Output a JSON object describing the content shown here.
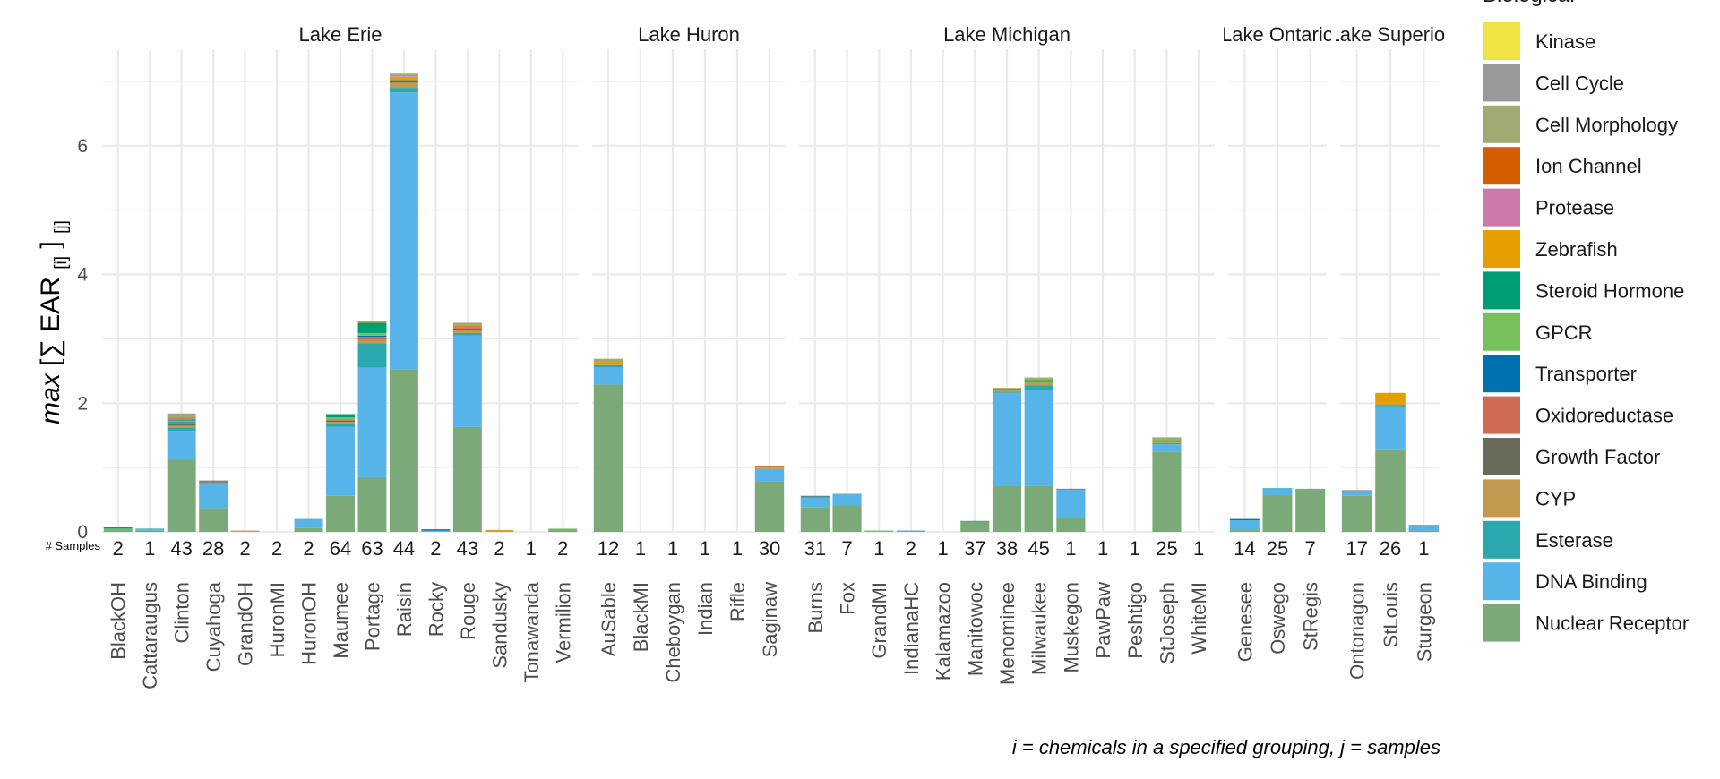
{
  "chart_data": {
    "type": "bar",
    "stacked": true,
    "ylabel_prefix": "max",
    "ylabel_sum": "[∑ EAR",
    "ylabel_sub1": "[i]",
    "ylabel_close": "]",
    "ylabel_sub2": "[j]",
    "ylim": [
      0,
      7.5
    ],
    "yticks": [
      0,
      2,
      4,
      6
    ],
    "grid": true,
    "samples_label": "# Samples",
    "caption": "i = chemicals in a specified grouping, j = samples",
    "legend_title": "Biological",
    "legend_placement": "right",
    "categories_legend": [
      {
        "name": "Kinase",
        "color": "#F0E442"
      },
      {
        "name": "Cell Cycle",
        "color": "#999999"
      },
      {
        "name": "Cell Morphology",
        "color": "#A0AA73"
      },
      {
        "name": "Ion Channel",
        "color": "#D55E00"
      },
      {
        "name": "Protease",
        "color": "#CC79A7"
      },
      {
        "name": "Zebrafish",
        "color": "#E69F00"
      },
      {
        "name": "Steroid Hormone",
        "color": "#009E73"
      },
      {
        "name": "GPCR",
        "color": "#77C05B"
      },
      {
        "name": "Transporter",
        "color": "#0072B2"
      },
      {
        "name": "Oxidoreductase",
        "color": "#CF6A55"
      },
      {
        "name": "Growth Factor",
        "color": "#6A6A5A"
      },
      {
        "name": "CYP",
        "color": "#C19A4F"
      },
      {
        "name": "Esterase",
        "color": "#2BA8AE"
      },
      {
        "name": "DNA Binding",
        "color": "#56B4E9"
      },
      {
        "name": "Nuclear Receptor",
        "color": "#7BAA78"
      }
    ],
    "facets": [
      {
        "name": "Lake Erie",
        "sites": [
          {
            "site": "BlackOH",
            "n": "2",
            "v": {
              "Nuclear Receptor": 0.04,
              "Steroid Hormone": 0.02,
              "GPCR": 0.01
            }
          },
          {
            "site": "Cattaraugus",
            "n": "1",
            "v": {
              "Nuclear Receptor": 0.02,
              "DNA Binding": 0.02,
              "Esterase": 0.01
            }
          },
          {
            "site": "Clinton",
            "n": "43",
            "v": {
              "Nuclear Receptor": 1.12,
              "DNA Binding": 0.45,
              "Esterase": 0.05,
              "CYP": 0.03,
              "Growth Factor": 0.03,
              "Oxidoreductase": 0.02,
              "Transporter": 0.01,
              "GPCR": 0.02,
              "Steroid Hormone": 0.02,
              "Zebrafish": 0.01,
              "Protease": 0.01,
              "Ion Channel": 0.01,
              "Cell Morphology": 0.05,
              "Cell Cycle": 0.01,
              "Kinase": 0.0
            }
          },
          {
            "site": "Cuyahoga",
            "n": "28",
            "v": {
              "Nuclear Receptor": 0.37,
              "DNA Binding": 0.37,
              "Esterase": 0.02,
              "CYP": 0.01,
              "Growth Factor": 0.02,
              "Cell Cycle": 0.01
            }
          },
          {
            "site": "GrandOH",
            "n": "2",
            "v": {
              "Nuclear Receptor": 0.01,
              "CYP": 0.01
            }
          },
          {
            "site": "HuronMI",
            "n": "2",
            "v": {}
          },
          {
            "site": "HuronOH",
            "n": "2",
            "v": {
              "Nuclear Receptor": 0.06,
              "DNA Binding": 0.13,
              "Esterase": 0.01
            }
          },
          {
            "site": "Maumee",
            "n": "64",
            "v": {
              "Nuclear Receptor": 0.56,
              "DNA Binding": 1.07,
              "Esterase": 0.05,
              "CYP": 0.03,
              "Growth Factor": 0.02,
              "Oxidoreductase": 0.02,
              "GPCR": 0.03,
              "Steroid Hormone": 0.05
            }
          },
          {
            "site": "Portage",
            "n": "63",
            "v": {
              "Nuclear Receptor": 0.85,
              "DNA Binding": 1.7,
              "Esterase": 0.38,
              "CYP": 0.05,
              "Oxidoreductase": 0.05,
              "Transporter": 0.02,
              "GPCR": 0.04,
              "Zebrafish": 0.03,
              "Steroid Hormone": 0.16
            }
          },
          {
            "site": "Raisin",
            "n": "44",
            "v": {
              "Nuclear Receptor": 2.53,
              "DNA Binding": 4.3,
              "Esterase": 0.07,
              "CYP": 0.08,
              "Growth Factor": 0.02,
              "Oxidoreductase": 0.02,
              "Zebrafish": 0.03,
              "Protease": 0.01,
              "Cell Morphology": 0.04,
              "GPCR": 0.02,
              "Kinase": 0.01
            }
          },
          {
            "site": "Rocky",
            "n": "2",
            "v": {
              "Nuclear Receptor": 0.01,
              "DNA Binding": 0.01,
              "Transporter": 0.02
            }
          },
          {
            "site": "Rouge",
            "n": "43",
            "v": {
              "Nuclear Receptor": 1.63,
              "DNA Binding": 1.42,
              "Esterase": 0.04,
              "CYP": 0.05,
              "Growth Factor": 0.02,
              "Oxidoreductase": 0.02,
              "Zebrafish": 0.01,
              "Ion Channel": 0.01,
              "Cell Morphology": 0.05
            }
          },
          {
            "site": "Sandusky",
            "n": "2",
            "v": {
              "Nuclear Receptor": 0.01,
              "CYP": 0.01,
              "Zebrafish": 0.01
            }
          },
          {
            "site": "Tonawanda",
            "n": "1",
            "v": {}
          },
          {
            "site": "Vermilion",
            "n": "2",
            "v": {
              "Nuclear Receptor": 0.04,
              "GPCR": 0.01
            }
          }
        ]
      },
      {
        "name": "Lake Huron",
        "sites": [
          {
            "site": "AuSable",
            "n": "12",
            "v": {
              "Nuclear Receptor": 2.29,
              "DNA Binding": 0.27,
              "Esterase": 0.03,
              "CYP": 0.04,
              "Cell Morphology": 0.04,
              "Zebrafish": 0.02
            }
          },
          {
            "site": "BlackMI",
            "n": "1",
            "v": {}
          },
          {
            "site": "Cheboygan",
            "n": "1",
            "v": {}
          },
          {
            "site": "Indian",
            "n": "1",
            "v": {}
          },
          {
            "site": "Rifle",
            "n": "1",
            "v": {}
          },
          {
            "site": "Saginaw",
            "n": "30",
            "v": {
              "Nuclear Receptor": 0.78,
              "DNA Binding": 0.2,
              "CYP": 0.02,
              "Zebrafish": 0.02,
              "Ion Channel": 0.01
            }
          }
        ]
      },
      {
        "name": "Lake Michigan",
        "sites": [
          {
            "site": "Burns",
            "n": "31",
            "v": {
              "Nuclear Receptor": 0.38,
              "DNA Binding": 0.15,
              "Esterase": 0.02,
              "Growth Factor": 0.01
            }
          },
          {
            "site": "Fox",
            "n": "7",
            "v": {
              "Nuclear Receptor": 0.41,
              "DNA Binding": 0.17,
              "Esterase": 0.01
            }
          },
          {
            "site": "GrandMI",
            "n": "1",
            "v": {
              "Nuclear Receptor": 0.01,
              "GPCR": 0.01
            }
          },
          {
            "site": "IndianaHC",
            "n": "2",
            "v": {
              "Nuclear Receptor": 0.01,
              "Esterase": 0.01
            }
          },
          {
            "site": "Kalamazoo",
            "n": "1",
            "v": {}
          },
          {
            "site": "Manitowoc",
            "n": "37",
            "v": {
              "Nuclear Receptor": 0.16,
              "Esterase": 0.01
            }
          },
          {
            "site": "Menominee",
            "n": "38",
            "v": {
              "Nuclear Receptor": 0.71,
              "DNA Binding": 1.45,
              "Esterase": 0.02,
              "CYP": 0.02,
              "Growth Factor": 0.02,
              "Zebrafish": 0.01,
              "Cell Morphology": 0.01
            }
          },
          {
            "site": "Milwaukee",
            "n": "45",
            "v": {
              "Nuclear Receptor": 0.72,
              "DNA Binding": 1.48,
              "Esterase": 0.08,
              "CYP": 0.03,
              "GPCR": 0.02,
              "Zebrafish": 0.02,
              "Cell Morphology": 0.02,
              "Steroid Hormone": 0.03
            }
          },
          {
            "site": "Muskegon",
            "n": "1",
            "v": {
              "Nuclear Receptor": 0.22,
              "DNA Binding": 0.44,
              "Growth Factor": 0.01
            }
          },
          {
            "site": "PawPaw",
            "n": "1",
            "v": {}
          },
          {
            "site": "Peshtigo",
            "n": "1",
            "v": {}
          },
          {
            "site": "StJoseph",
            "n": "25",
            "v": {
              "Nuclear Receptor": 1.25,
              "DNA Binding": 0.11,
              "Esterase": 0.02,
              "CYP": 0.02,
              "GPCR": 0.03,
              "Cell Morphology": 0.03,
              "Growth Factor": 0.01
            }
          },
          {
            "site": "WhiteMI",
            "n": "1",
            "v": {}
          }
        ]
      },
      {
        "name": "Lake Ontario",
        "sites": [
          {
            "site": "Genesee",
            "n": "14",
            "v": {
              "Nuclear Receptor": 0.04,
              "DNA Binding": 0.14,
              "Transporter": 0.02
            }
          },
          {
            "site": "Oswego",
            "n": "25",
            "v": {
              "Nuclear Receptor": 0.57,
              "DNA Binding": 0.1,
              "Esterase": 0.01
            }
          },
          {
            "site": "StRegis",
            "n": "7",
            "v": {
              "Nuclear Receptor": 0.67
            }
          }
        ]
      },
      {
        "name": "Lake Superior",
        "sites": [
          {
            "site": "Ontonagon",
            "n": "17",
            "v": {
              "Nuclear Receptor": 0.56,
              "DNA Binding": 0.06,
              "Cell Cycle": 0.02,
              "Growth Factor": 0.01
            }
          },
          {
            "site": "StLouis",
            "n": "26",
            "v": {
              "Nuclear Receptor": 1.27,
              "DNA Binding": 0.68,
              "Esterase": 0.02,
              "CYP": 0.03,
              "Zebrafish": 0.16
            }
          },
          {
            "site": "Sturgeon",
            "n": "1",
            "v": {
              "Nuclear Receptor": 0.02,
              "DNA Binding": 0.09
            }
          }
        ]
      }
    ]
  }
}
